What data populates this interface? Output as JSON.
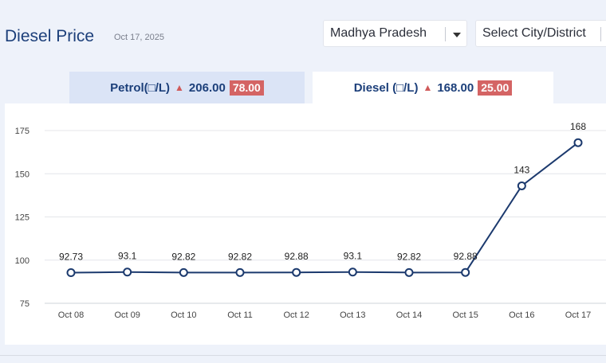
{
  "header": {
    "title": "Diesel Price",
    "date": "Oct 17, 2025"
  },
  "filters": {
    "state_value": "Madhya Pradesh",
    "city_placeholder": "Select City/District"
  },
  "tabs": [
    {
      "fuel_label": "Petrol(□/L)",
      "price": "206.00",
      "change": "78.00",
      "active": false
    },
    {
      "fuel_label": "Diesel (□/L)",
      "price": "168.00",
      "change": "25.00",
      "active": true
    }
  ],
  "colors": {
    "line": "#1c3a6e",
    "increase_badge": "#d46464",
    "title": "#1c3f7a"
  },
  "icons": {
    "dropdown": "chevron-down-icon",
    "increase": "triangle-up-icon"
  },
  "chart_data": {
    "type": "line",
    "title": "",
    "xlabel": "",
    "ylabel": "",
    "categories": [
      "Oct 08",
      "Oct 09",
      "Oct 10",
      "Oct 11",
      "Oct 12",
      "Oct 13",
      "Oct 14",
      "Oct 15",
      "Oct 16",
      "Oct 17"
    ],
    "series": [
      {
        "values": [
          92.73,
          93.1,
          92.82,
          92.82,
          92.88,
          93.1,
          92.82,
          92.88,
          143,
          168
        ]
      }
    ],
    "data_labels": [
      "92.73",
      "93.1",
      "92.82",
      "92.82",
      "92.88",
      "93.1",
      "92.82",
      "92.88",
      "143",
      "168"
    ],
    "yticks": [
      75,
      100,
      125,
      150,
      175
    ],
    "ylim": [
      75,
      175
    ],
    "grid": true,
    "legend": "none"
  }
}
